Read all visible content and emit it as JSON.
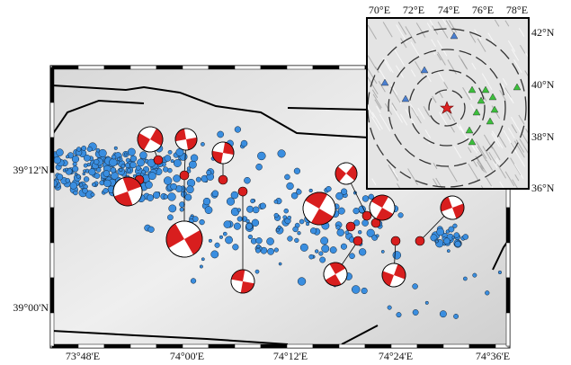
{
  "main_map": {
    "lon_labels": [
      "73°48'E",
      "74°00'E",
      "74°12'E",
      "74°24'E",
      "74°36'E"
    ],
    "lat_labels": [
      "39°12'N",
      "39°00'N"
    ]
  },
  "inset_map": {
    "lon_labels": [
      "70°E",
      "72°E",
      "74°E",
      "76°E",
      "78°E"
    ],
    "lat_labels": [
      "42°N",
      "40°N",
      "38°N",
      "36°N"
    ]
  }
}
